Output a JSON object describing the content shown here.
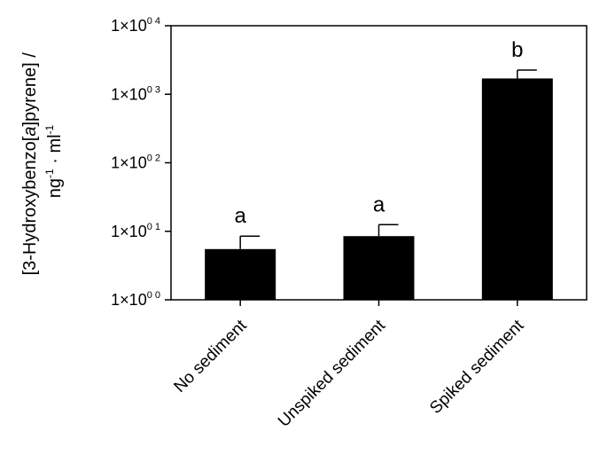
{
  "chart_data": {
    "type": "bar",
    "scale": "log",
    "grid": false,
    "legend": "none",
    "ylim": [
      1,
      10000
    ],
    "yticks": [
      {
        "value": 1,
        "base": "1×10",
        "exp": "0 0"
      },
      {
        "value": 10,
        "base": "1×10",
        "exp": "0 1"
      },
      {
        "value": 100,
        "base": "1×10",
        "exp": "0 2"
      },
      {
        "value": 1000,
        "base": "1×10",
        "exp": "0 3"
      },
      {
        "value": 10000,
        "base": "1×10",
        "exp": "0 4"
      }
    ],
    "ylabel_line1_pre": "[3-Hydroxybenzo[",
    "ylabel_line1_ital": "a",
    "ylabel_line1_post": "]pyrene] /",
    "ylabel_line2": [
      "ng",
      "-1",
      " · ml",
      "-1"
    ],
    "categories": [
      "No sediment",
      "Unspiked sediment",
      "Spiked sediment"
    ],
    "values": [
      5.5,
      8.5,
      1700
    ],
    "error_upper": [
      8.5,
      12.5,
      2250
    ],
    "annotations": [
      "a",
      "a",
      "b"
    ],
    "bar_color": "#000000"
  }
}
